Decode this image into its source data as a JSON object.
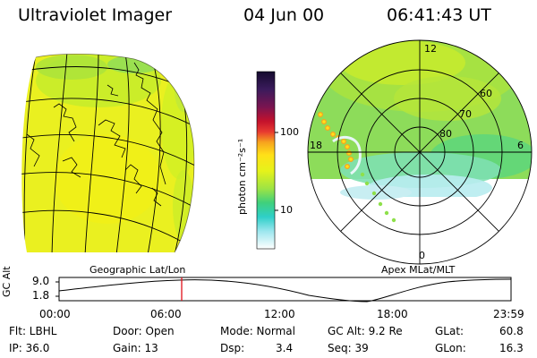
{
  "header": {
    "title": "Ultraviolet Imager",
    "date": "04 Jun 00",
    "time": "06:41:43 UT"
  },
  "colorbar": {
    "label": "photon cm⁻²s⁻¹",
    "ticks": [
      "100",
      "10"
    ],
    "colors": [
      "#140a2e",
      "#3b1b5c",
      "#7a1450",
      "#b3122e",
      "#e0263b",
      "#f55a28",
      "#f7a51e",
      "#ffe018",
      "#d5f01a",
      "#8ee04a",
      "#3fd07c",
      "#2ecfc8",
      "#7be0e8",
      "#c8eef2",
      "#ffffff"
    ]
  },
  "geo_panel": {
    "label": "Geographic Lat/Lon"
  },
  "polar_panel": {
    "label": "Apex MLat/MLT",
    "mlt_labels": [
      "12",
      "18",
      "6",
      "0"
    ],
    "lat_labels": [
      "60",
      "70",
      "80"
    ]
  },
  "altitude_plot": {
    "ylabel": "GC Alt",
    "yticks": [
      "9.0",
      "1.8"
    ],
    "xticks": [
      "00:00",
      "06:00",
      "12:00",
      "18:00",
      "23:59"
    ],
    "marker_time": "06:41"
  },
  "info": {
    "row1": {
      "flt": "Flt: LBHL",
      "door": "Door: Open",
      "mode": "Mode: Normal",
      "gcalt": "GC Alt: 9.2 Re",
      "glat_label": "GLat:",
      "glat_value": "60.8"
    },
    "row2": {
      "ip": "IP: 36.0",
      "gain": "Gain: 13",
      "dsp_label": "Dsp:",
      "dsp_value": "3.4",
      "seq": "Seq: 39",
      "glon_label": "GLon:",
      "glon_value": "16.3"
    }
  }
}
